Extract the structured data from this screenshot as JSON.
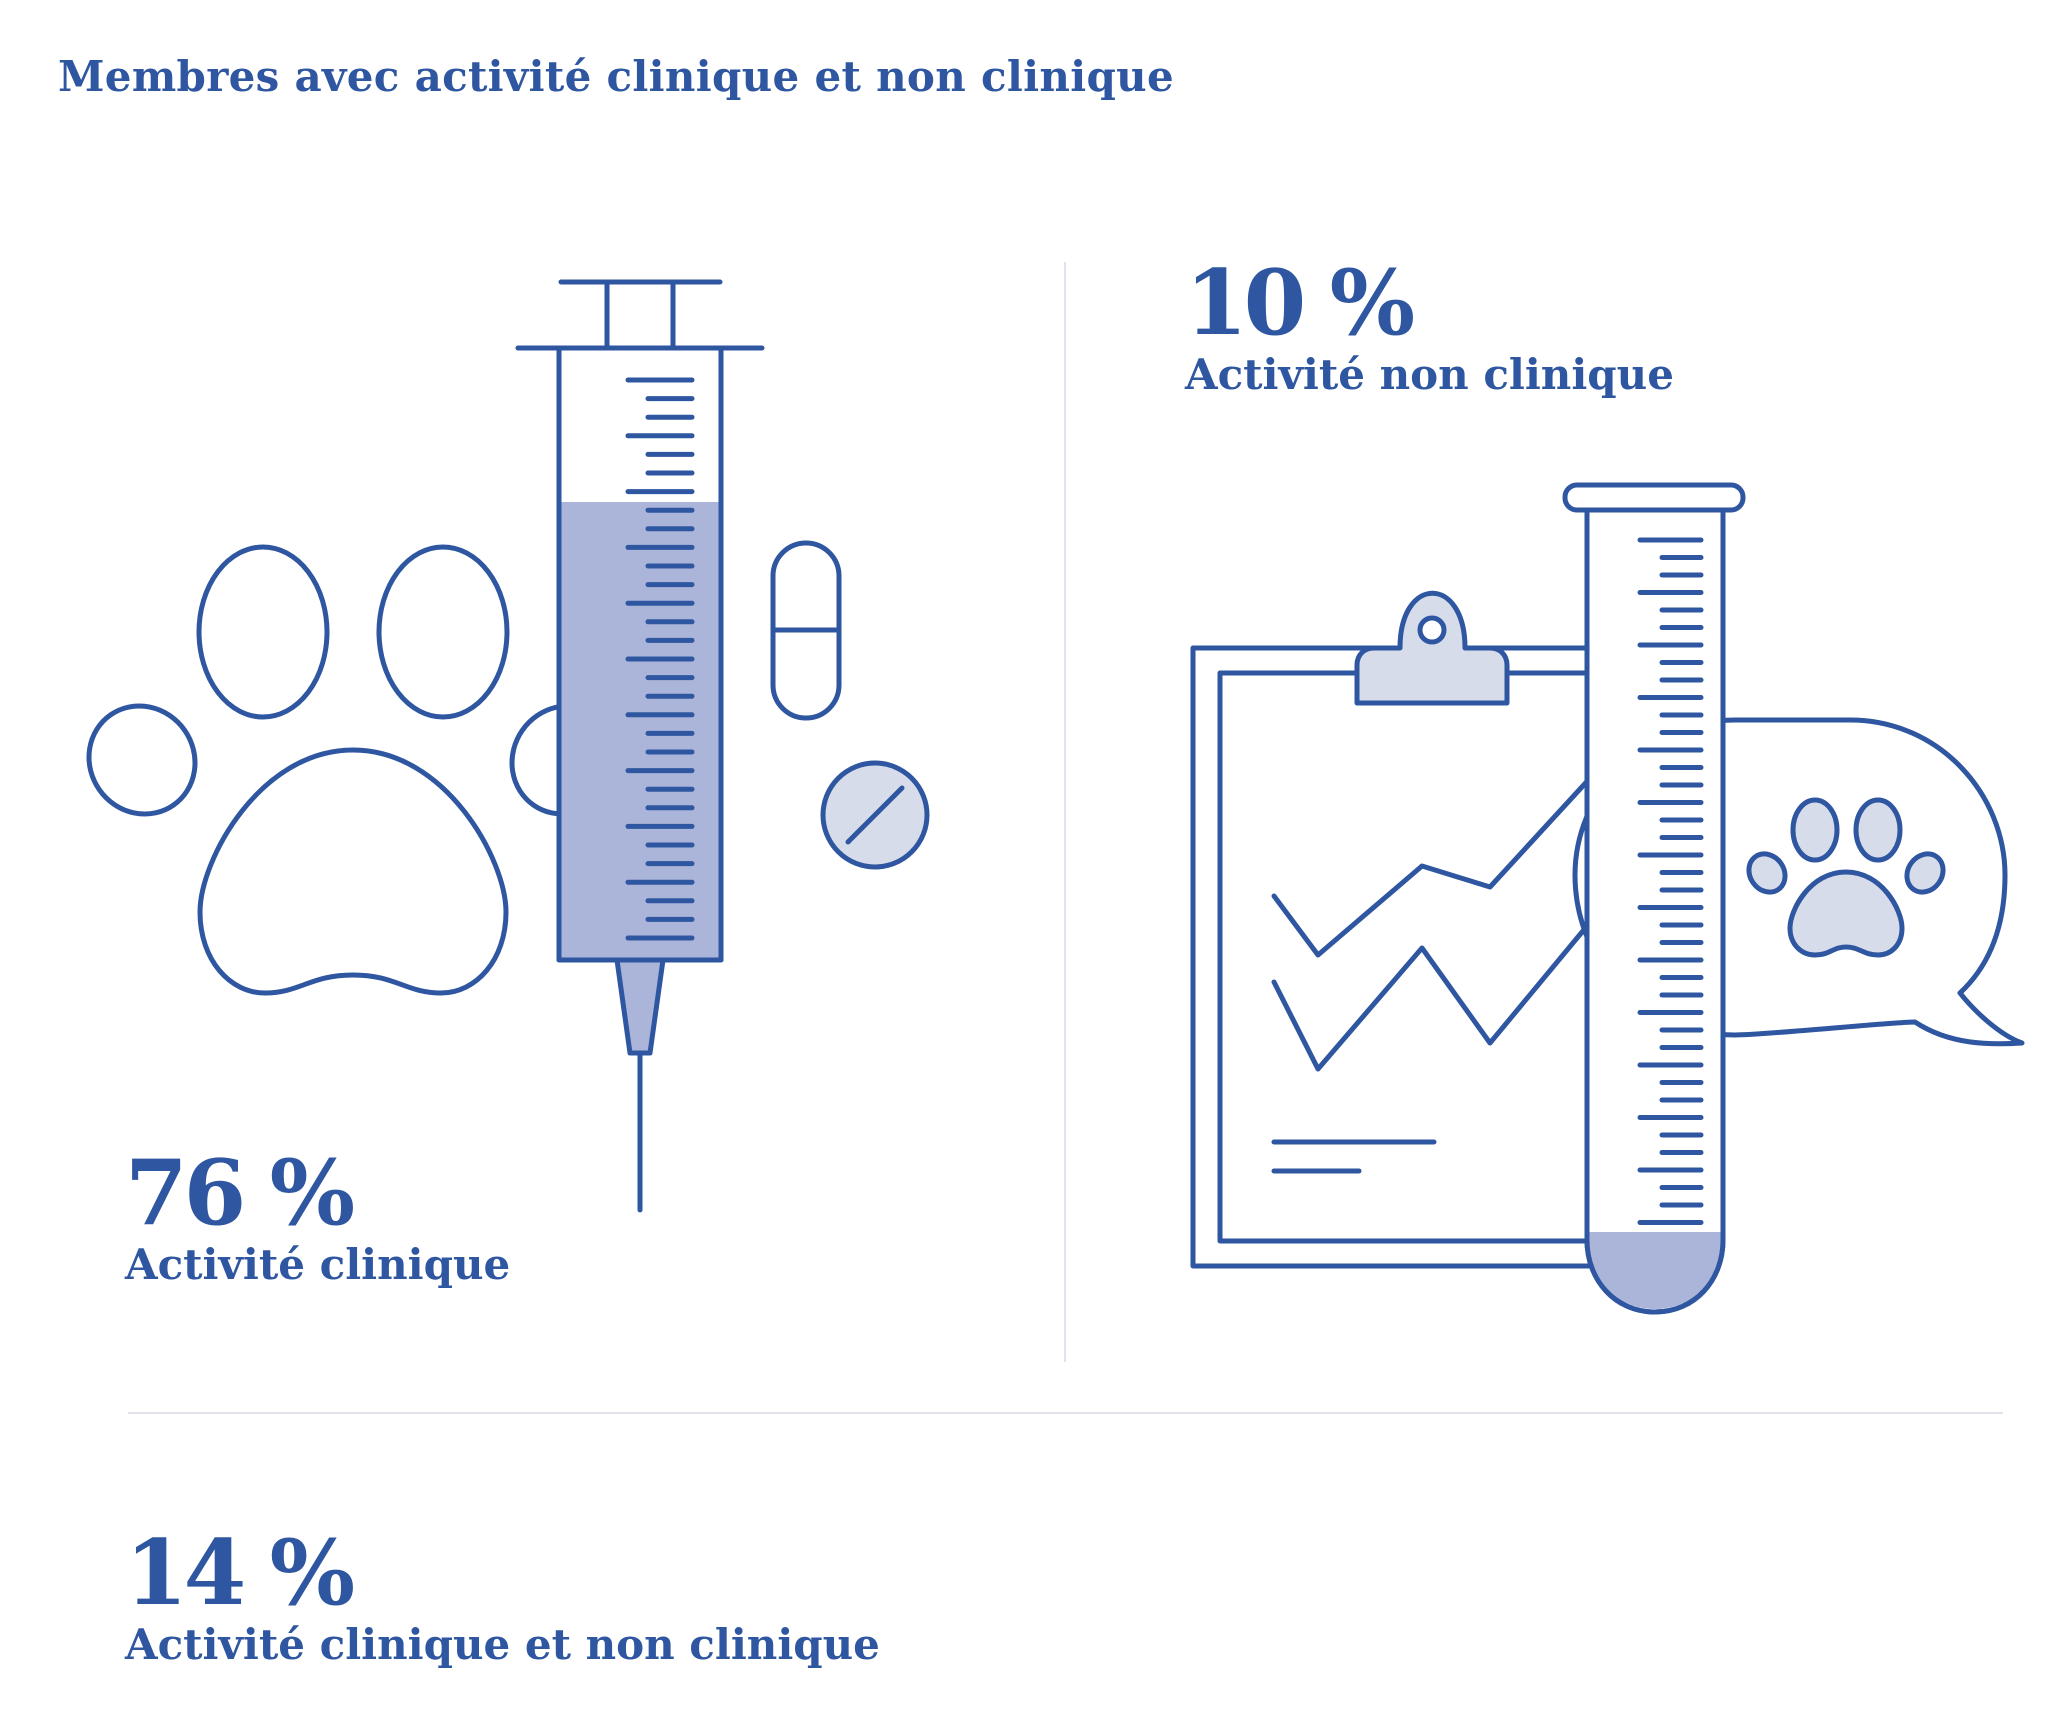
{
  "title": "Membres avec activité clinique et non clinique",
  "colors": {
    "primary": "#2f56a0",
    "fill_dark": "#abb5da",
    "fill_light": "#d6dcea",
    "divider": "#e1e3ec"
  },
  "stats": {
    "clinical": {
      "value": "76 %",
      "label": "Activité clinique"
    },
    "non_clinical": {
      "value": "10 %",
      "label": "Activité non clinique"
    },
    "both": {
      "value": "14 %",
      "label": "Activité clinique et non clinique"
    }
  },
  "icons": {
    "clinical": [
      "paw-icon",
      "syringe-icon",
      "capsule-icon",
      "tablet-icon"
    ],
    "non_clinical": [
      "clipboard-chart-icon",
      "test-tube-icon",
      "paw-speech-bubble-icon"
    ]
  }
}
